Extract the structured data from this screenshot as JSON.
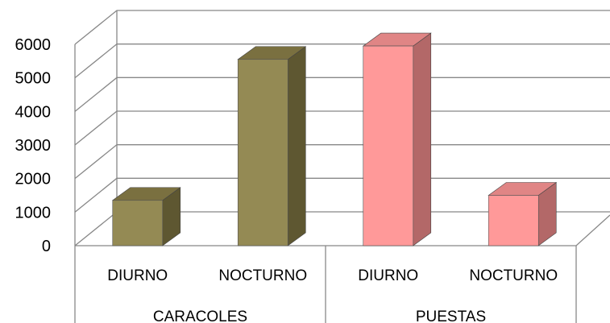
{
  "chart_data": {
    "type": "bar",
    "style": "3d-column",
    "grid": true,
    "legend": "none",
    "ylim": [
      0,
      6000
    ],
    "y_ticks": [
      "0",
      "1000",
      "2000",
      "3000",
      "4000",
      "5000",
      "6000"
    ],
    "groups": [
      {
        "label": "CARACOLES",
        "categories": [
          "DIURNO",
          "NOCTURNO"
        ]
      },
      {
        "label": "PUESTAS",
        "categories": [
          "DIURNO",
          "NOCTURNO"
        ]
      }
    ],
    "bars": [
      {
        "group": "CARACOLES",
        "category": "DIURNO",
        "value": 1350,
        "color": "#948a54"
      },
      {
        "group": "CARACOLES",
        "category": "NOCTURNO",
        "value": 5550,
        "color": "#948a54"
      },
      {
        "group": "PUESTAS",
        "category": "DIURNO",
        "value": 5950,
        "color": "#ff9999"
      },
      {
        "group": "PUESTAS",
        "category": "NOCTURNO",
        "value": 1500,
        "color": "#ff9999"
      }
    ],
    "colors": {
      "caracoles_front": "#948a54",
      "caracoles_side": "#5e5731",
      "caracoles_top": "#7a7040",
      "puestas_front": "#ff9999",
      "puestas_side": "#b36868",
      "puestas_top": "#e08585",
      "grid": "#888888"
    }
  }
}
